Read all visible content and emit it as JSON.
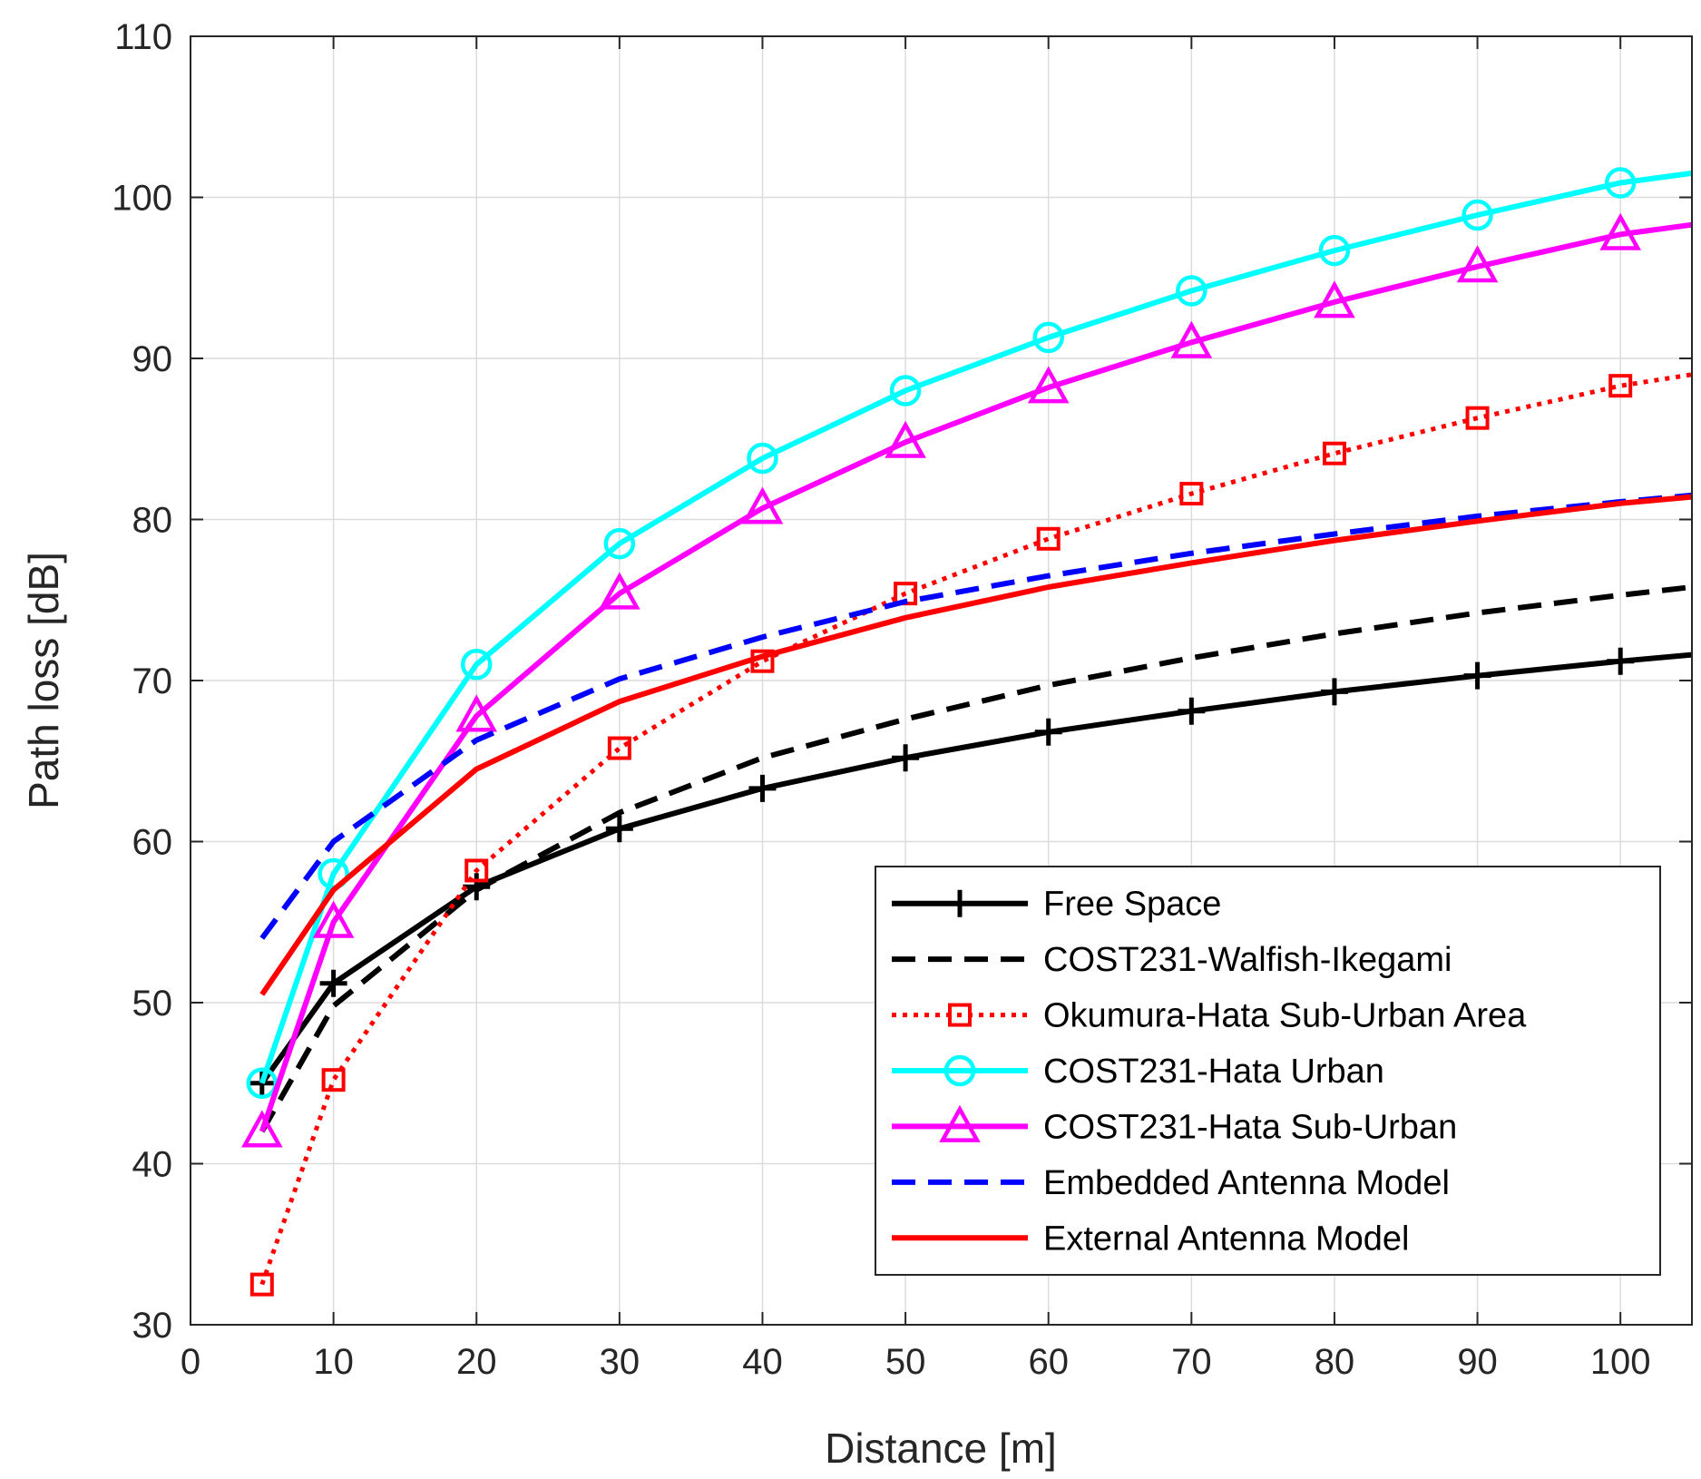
{
  "chart_data": {
    "type": "line",
    "xlabel": "Distance [m]",
    "ylabel": "Path loss [dB]",
    "xlim": [
      0,
      105
    ],
    "ylim": [
      30,
      110
    ],
    "xticks": [
      0,
      10,
      20,
      30,
      40,
      50,
      60,
      70,
      80,
      90,
      100
    ],
    "yticks": [
      30,
      40,
      50,
      60,
      70,
      80,
      90,
      100,
      110
    ],
    "grid": true,
    "legend_position": "bottom-right",
    "series": [
      {
        "name": "Free Space",
        "color": "#000000",
        "dash": "solid",
        "marker": "plus",
        "x": [
          5,
          10,
          20,
          30,
          40,
          50,
          60,
          70,
          80,
          90,
          100,
          105
        ],
        "y": [
          45.0,
          51.2,
          57.2,
          60.8,
          63.3,
          65.2,
          66.8,
          68.1,
          69.3,
          70.3,
          71.2,
          71.6
        ]
      },
      {
        "name": "COST231-Walfish-Ikegami",
        "color": "#000000",
        "dash": "dashed",
        "marker": "none",
        "x": [
          5,
          10,
          20,
          30,
          40,
          50,
          60,
          70,
          80,
          90,
          100,
          105
        ],
        "y": [
          42.0,
          49.8,
          57.0,
          61.8,
          65.2,
          67.6,
          69.7,
          71.4,
          72.9,
          74.2,
          75.3,
          75.8
        ]
      },
      {
        "name": "Okumura-Hata Sub-Urban Area",
        "color": "#ff0000",
        "dash": "dotted",
        "marker": "square",
        "x": [
          5,
          10,
          20,
          30,
          40,
          50,
          60,
          70,
          80,
          90,
          100,
          105
        ],
        "y": [
          32.5,
          45.2,
          58.2,
          65.8,
          71.2,
          75.4,
          78.8,
          81.6,
          84.1,
          86.3,
          88.3,
          89.0
        ]
      },
      {
        "name": "COST231-Hata Urban",
        "color": "#00ffff",
        "dash": "solid",
        "marker": "circle",
        "x": [
          5,
          10,
          20,
          30,
          40,
          50,
          60,
          70,
          80,
          90,
          100,
          105
        ],
        "y": [
          45.0,
          58.0,
          71.0,
          78.5,
          83.8,
          88.0,
          91.3,
          94.2,
          96.7,
          98.9,
          100.9,
          101.5
        ]
      },
      {
        "name": "COST231-Hata Sub-Urban",
        "color": "#ff00ff",
        "dash": "solid",
        "marker": "triangle",
        "x": [
          5,
          10,
          20,
          30,
          40,
          50,
          60,
          70,
          80,
          90,
          100,
          105
        ],
        "y": [
          42.0,
          55.0,
          67.8,
          75.4,
          80.7,
          84.8,
          88.2,
          91.0,
          93.5,
          95.7,
          97.7,
          98.3
        ]
      },
      {
        "name": "Embedded Antenna Model",
        "color": "#0000ff",
        "dash": "dashed",
        "marker": "none",
        "x": [
          5,
          10,
          20,
          30,
          40,
          50,
          60,
          70,
          80,
          90,
          100,
          105
        ],
        "y": [
          54.0,
          60.0,
          66.3,
          70.1,
          72.7,
          74.9,
          76.5,
          77.9,
          79.1,
          80.2,
          81.1,
          81.5
        ]
      },
      {
        "name": "External Antenna Model",
        "color": "#ff0000",
        "dash": "solid",
        "marker": "none",
        "x": [
          5,
          10,
          20,
          30,
          40,
          50,
          60,
          70,
          80,
          90,
          100,
          105
        ],
        "y": [
          50.5,
          57.0,
          64.5,
          68.7,
          71.5,
          73.9,
          75.8,
          77.3,
          78.7,
          79.9,
          81.0,
          81.4
        ]
      }
    ]
  }
}
